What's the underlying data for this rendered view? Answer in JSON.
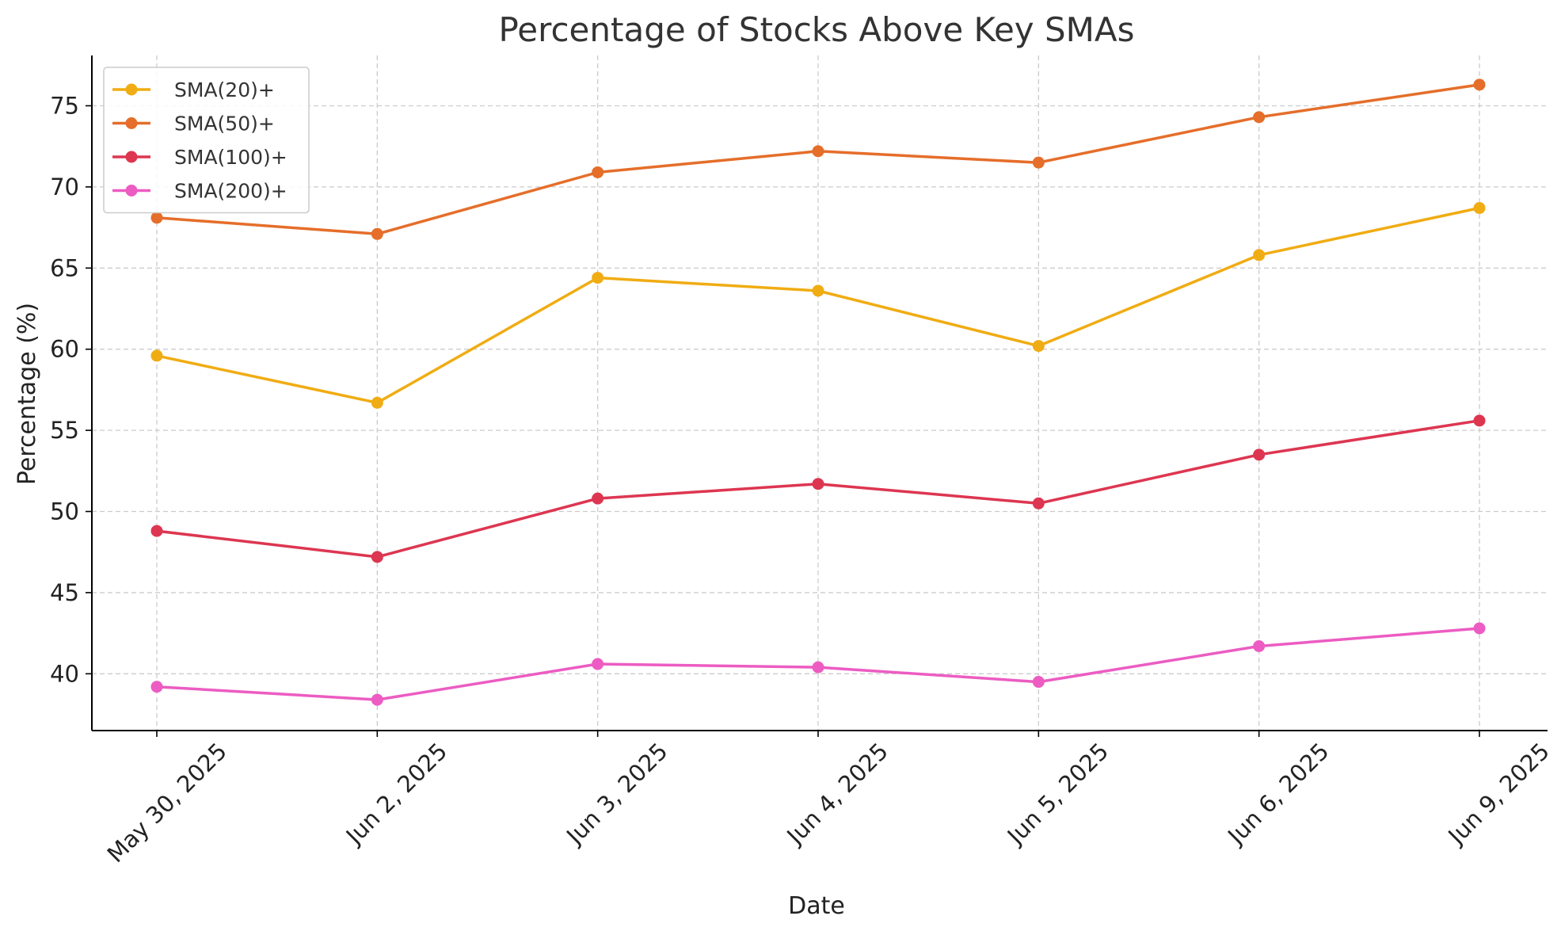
{
  "chart_data": {
    "type": "line",
    "title": "Percentage of Stocks Above Key SMAs",
    "xlabel": "Date",
    "ylabel": "Percentage (%)",
    "categories": [
      "May 30, 2025",
      "Jun 2, 2025",
      "Jun 3, 2025",
      "Jun 4, 2025",
      "Jun 5, 2025",
      "Jun 6, 2025",
      "Jun 9, 2025"
    ],
    "ylim": [
      36.5,
      78.1
    ],
    "yticks": [
      40,
      45,
      50,
      55,
      60,
      65,
      70,
      75
    ],
    "grid": true,
    "legend_position": "top-left",
    "series": [
      {
        "name": "SMA(20)+",
        "color": "#f0ac13",
        "values": [
          59.6,
          56.7,
          64.4,
          63.6,
          60.2,
          65.8,
          68.7
        ]
      },
      {
        "name": "SMA(50)+",
        "color": "#e56e2a",
        "values": [
          68.1,
          67.1,
          70.9,
          72.2,
          71.5,
          74.3,
          76.3
        ]
      },
      {
        "name": "SMA(100)+",
        "color": "#dd3651",
        "values": [
          48.8,
          47.2,
          50.8,
          51.7,
          50.5,
          53.5,
          55.6
        ]
      },
      {
        "name": "SMA(200)+",
        "color": "#ec5cc2",
        "values": [
          39.2,
          38.4,
          40.6,
          40.4,
          39.5,
          41.7,
          42.8
        ]
      }
    ]
  }
}
